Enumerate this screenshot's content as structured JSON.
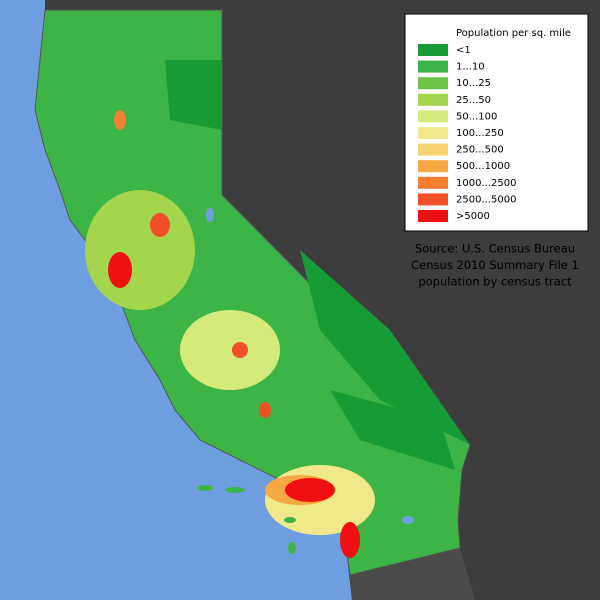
{
  "legend": {
    "title": "Population per sq. mile",
    "items": [
      {
        "label": "<1",
        "color": "#179b37"
      },
      {
        "label": "1...10",
        "color": "#3db446"
      },
      {
        "label": "10...25",
        "color": "#6cc447"
      },
      {
        "label": "25...50",
        "color": "#a3d64c"
      },
      {
        "label": "50...100",
        "color": "#d4eb7c"
      },
      {
        "label": "100...250",
        "color": "#efe98c"
      },
      {
        "label": "250...500",
        "color": "#f8d270"
      },
      {
        "label": "500...1000",
        "color": "#f6a845"
      },
      {
        "label": "1000...2500",
        "color": "#f47d31"
      },
      {
        "label": "2500...5000",
        "color": "#f14f25"
      },
      {
        "label": ">5000",
        "color": "#ee1010"
      }
    ]
  },
  "source": {
    "lines": [
      "Source: U.S. Census Bureau",
      "Census 2010 Summary File 1",
      "population by census tract"
    ]
  }
}
